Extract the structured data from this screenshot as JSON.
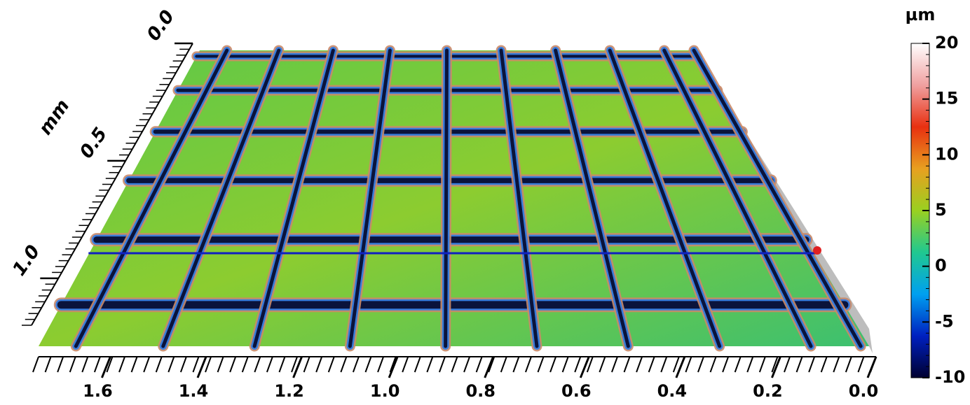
{
  "chart_data": {
    "type": "surface3d",
    "xticks": [
      {
        "value": 1.6,
        "label": "1.6"
      },
      {
        "value": 1.4,
        "label": "1.4"
      },
      {
        "value": 1.2,
        "label": "1.2"
      },
      {
        "value": 1.0,
        "label": "1.0"
      },
      {
        "value": 0.8,
        "label": "0.8"
      },
      {
        "value": 0.6,
        "label": "0.6"
      },
      {
        "value": 0.4,
        "label": "0.4"
      },
      {
        "value": 0.2,
        "label": "0.2"
      },
      {
        "value": 0,
        "label": "0.0"
      }
    ],
    "xlim": [
      1.75,
      0
    ],
    "ylabel": "mm",
    "yticks": [
      {
        "value": 0,
        "label": "0.0"
      },
      {
        "value": 0.5,
        "label": "0.5"
      },
      {
        "value": 1.0,
        "label": "1.0"
      }
    ],
    "ylim": [
      0,
      1.2
    ],
    "colorbar": {
      "label": "µm",
      "lim": [
        -10,
        20
      ],
      "ticks": [
        20,
        15,
        10,
        5,
        0,
        -5,
        -10
      ],
      "colors": [
        "#000030",
        "#0020c0",
        "#00a0f0",
        "#20c890",
        "#9ad020",
        "#e8a020",
        "#e83010",
        "#f0a0a0",
        "#ffffff"
      ]
    }
  }
}
